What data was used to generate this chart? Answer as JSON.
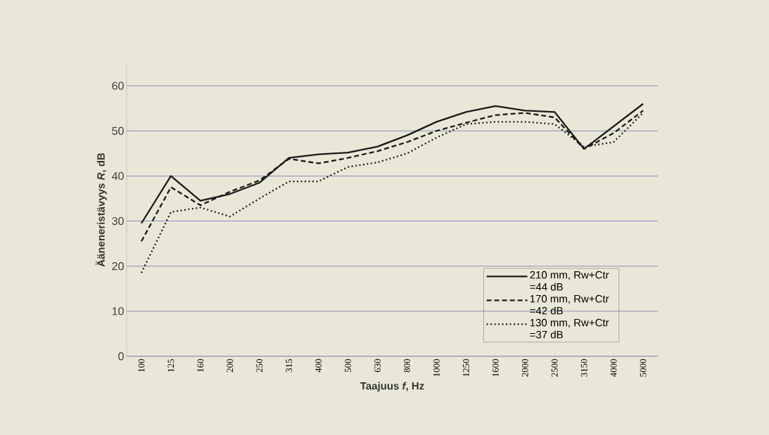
{
  "chart_data": {
    "type": "line",
    "xlabel": "Taajuus *f*, Hz",
    "ylabel": "Ääneneristävyys *R*, dB",
    "categories": [
      "100",
      "125",
      "160",
      "200",
      "250",
      "315",
      "400",
      "500",
      "630",
      "800",
      "1000",
      "1250",
      "1600",
      "2000",
      "2500",
      "3150",
      "4000",
      "5000"
    ],
    "series": [
      {
        "name": "210 mm, Rw+Ctr =44 dB",
        "color": "#1a1a1a",
        "line_style": "solid",
        "values": [
          29.5,
          40,
          34.5,
          36,
          38.5,
          44,
          44.8,
          45.2,
          46.5,
          49,
          52,
          54.2,
          55.5,
          54.5,
          54.2,
          46,
          51,
          56
        ]
      },
      {
        "name": "170 mm, Rw+Ctr =42 dB",
        "color": "#1a1a1a",
        "line_style": "dashed",
        "values": [
          25.5,
          37.5,
          33.5,
          36.5,
          39,
          43.8,
          42.8,
          44,
          45.5,
          47.5,
          50,
          51.8,
          53.5,
          54,
          53,
          46,
          49.5,
          54.5
        ]
      },
      {
        "name": "130 mm, Rw+Ctr =37 dB",
        "color": "#1a1a1a",
        "line_style": "dotted",
        "values": [
          18.5,
          32,
          33,
          31,
          35,
          38.8,
          38.8,
          42,
          43,
          45,
          48.5,
          51.5,
          52,
          52,
          51.5,
          46.5,
          47.5,
          54
        ]
      }
    ],
    "ylim": [
      0,
      65
    ],
    "yticks": [
      0,
      10,
      20,
      30,
      40,
      50,
      60
    ],
    "grid": "y",
    "legend": "bottom right",
    "marker": "none"
  }
}
